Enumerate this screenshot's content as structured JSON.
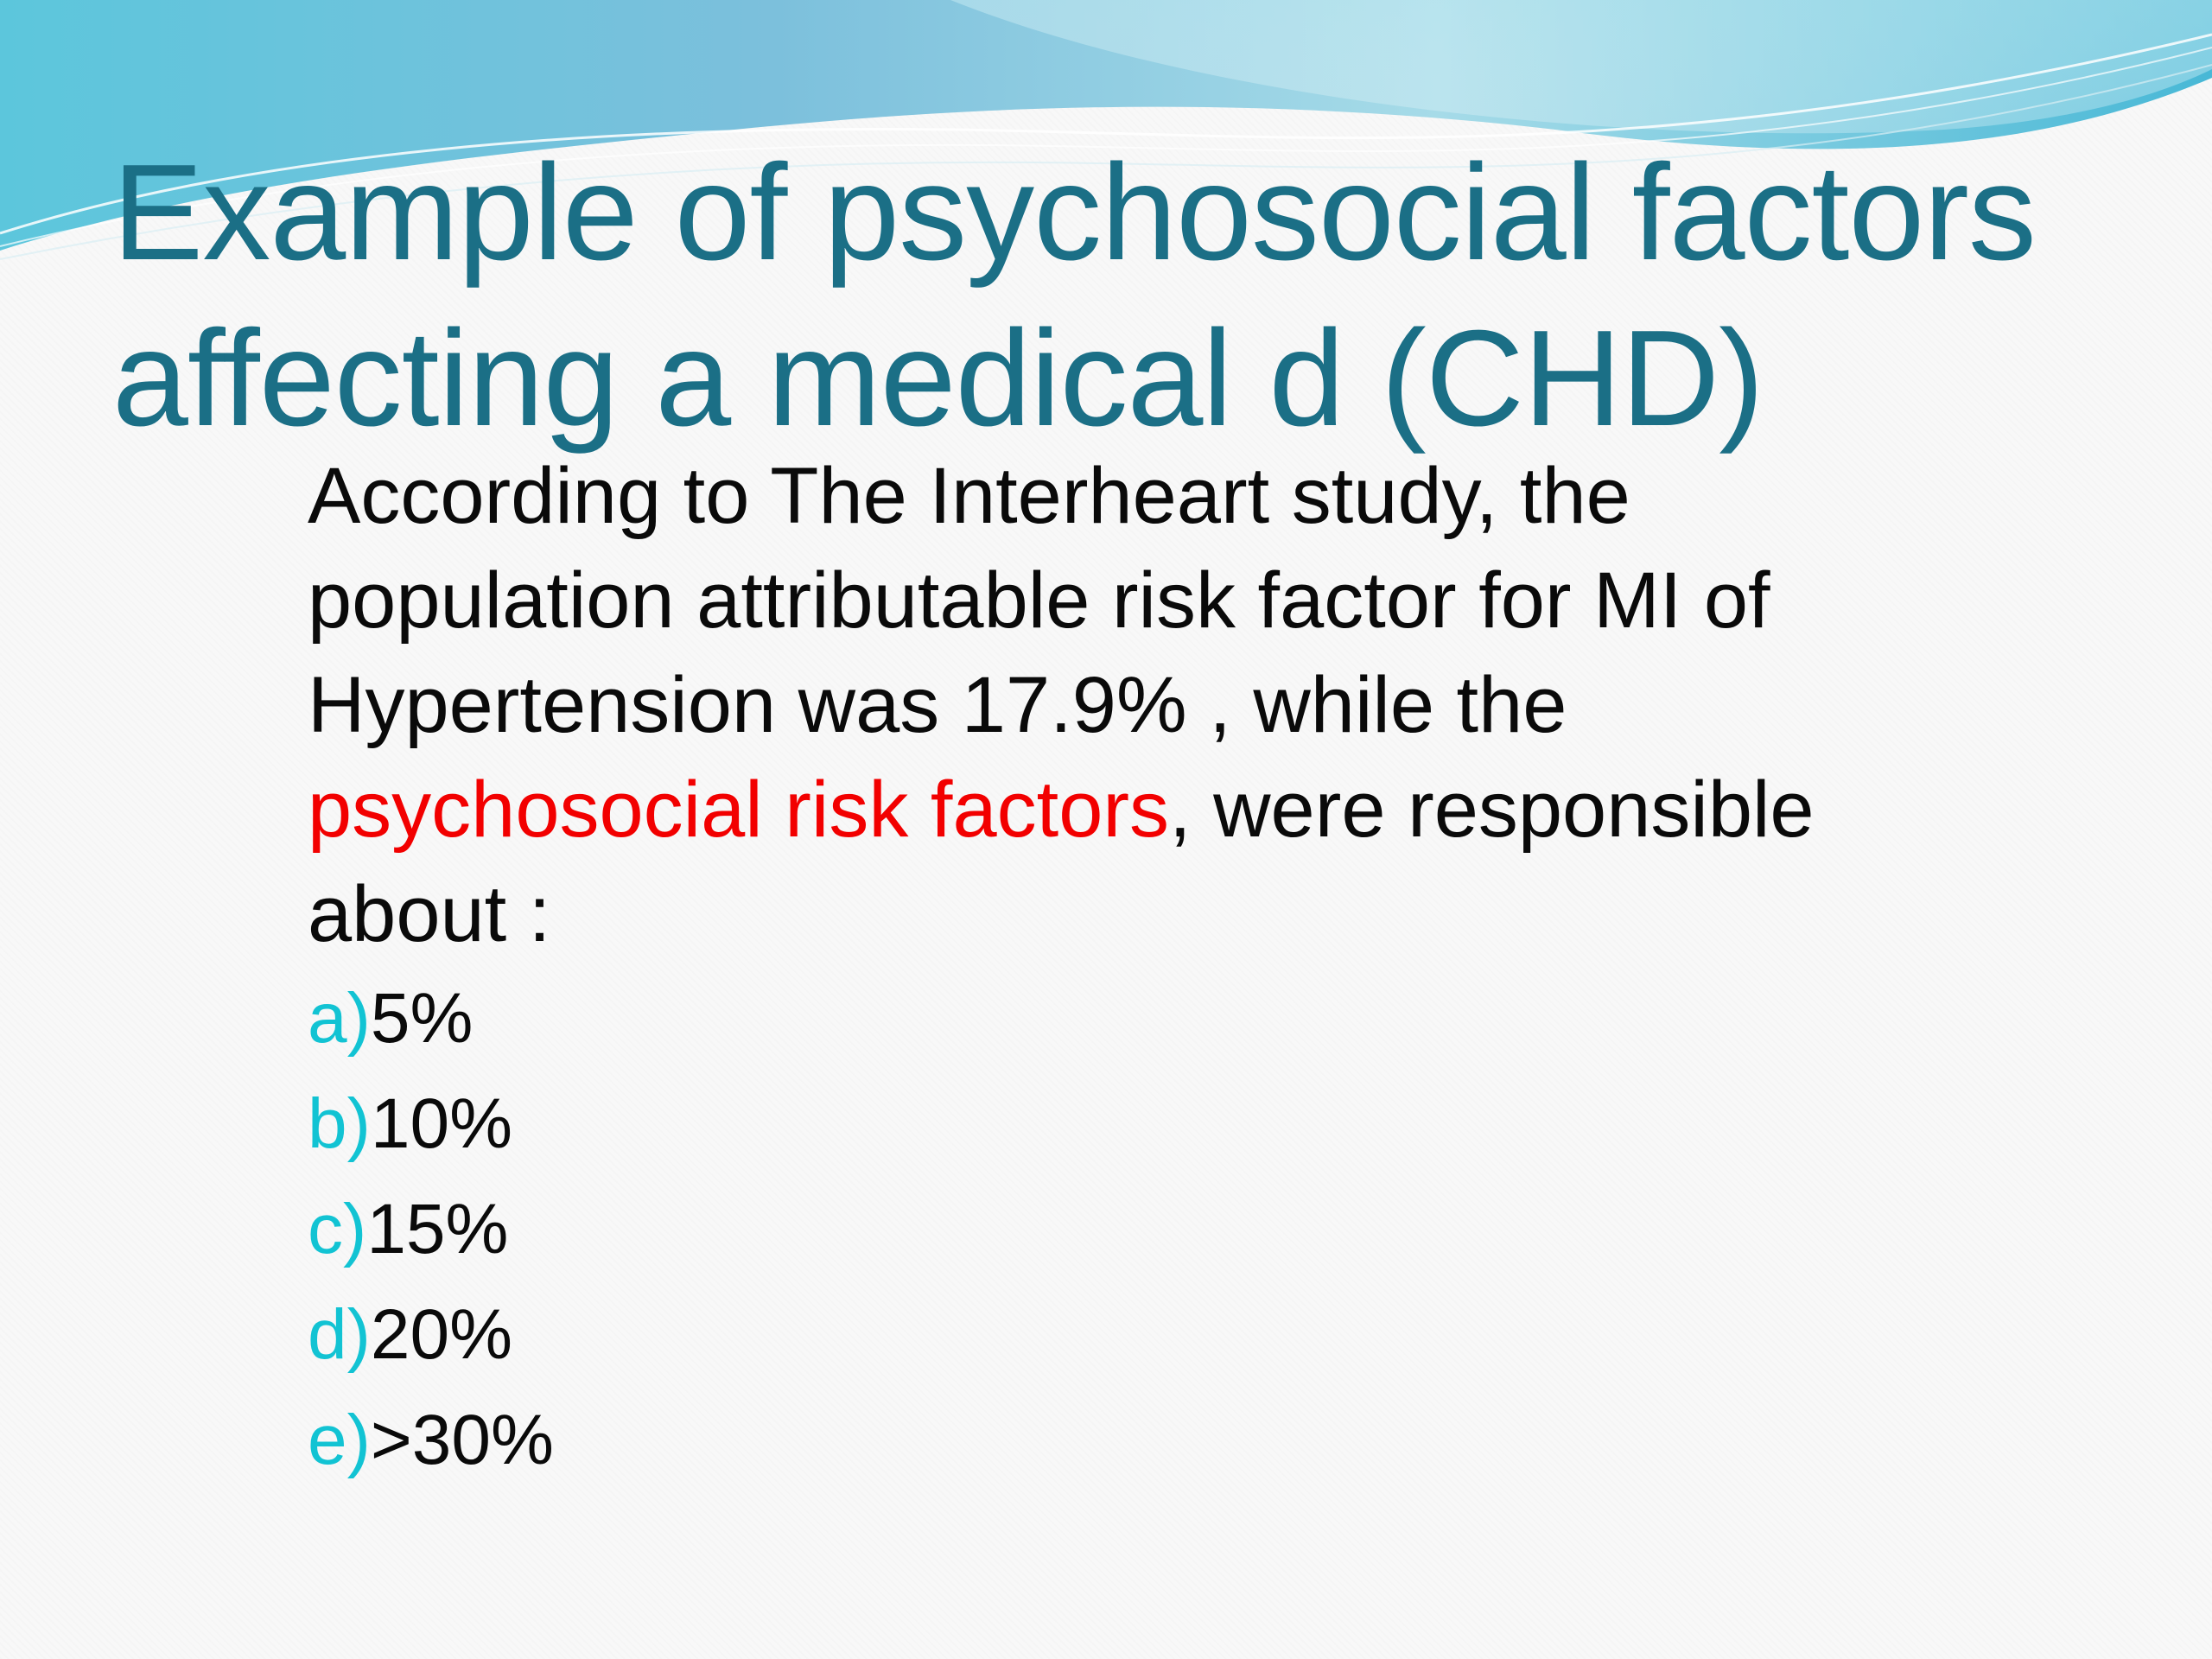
{
  "slide": {
    "title_lines": [
      "Example of psychosocial factors",
      "affecting a medical d (CHD)"
    ],
    "body": {
      "line1": "According to The Interheart study, the",
      "line2": "population attributable risk factor for MI of",
      "line3": "Hypertension was 17.9% , while the",
      "line4_highlight": "psychosocial risk factors",
      "line4_rest": ", were responsible",
      "line5": "about :"
    },
    "options": [
      {
        "letter": "a)",
        "value": "5%"
      },
      {
        "letter": "b)",
        "value": "10%"
      },
      {
        "letter": "c)",
        "value": "15%"
      },
      {
        "letter": "d)",
        "value": "20%"
      },
      {
        "letter": "e)",
        "value": ">30%"
      }
    ]
  },
  "colors": {
    "title": "#1b6f86",
    "highlight": "#f20000",
    "option_letter": "#12c3d3",
    "wave_dark": "#4ab7d3",
    "wave_light": "#a9dde9"
  }
}
